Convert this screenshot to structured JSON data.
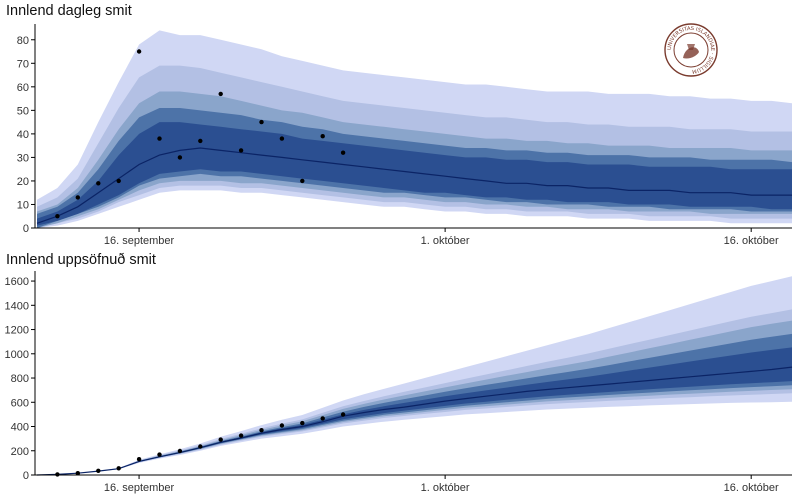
{
  "colors": {
    "bands": [
      "#eceefd",
      "#d0d7f4",
      "#b3c0e4",
      "#8aa5cb",
      "#4d73a8",
      "#2b4f91",
      "#0b2466"
    ],
    "points": "#000000",
    "axis": "#000000"
  },
  "logo": {
    "name": "university-seal",
    "text": "UNIVERSITAS ISLANDIAE · SIGILLUM"
  },
  "x_tick_labels": [
    "16. september",
    "1. október",
    "16. október"
  ],
  "chart_data": [
    {
      "type": "area",
      "title": "Innlend dagleg smit",
      "x": [
        "2020-09-11",
        "2020-09-12",
        "2020-09-13",
        "2020-09-14",
        "2020-09-15",
        "2020-09-16",
        "2020-09-17",
        "2020-09-18",
        "2020-09-19",
        "2020-09-20",
        "2020-09-21",
        "2020-09-22",
        "2020-09-23",
        "2020-09-24",
        "2020-09-25",
        "2020-09-26",
        "2020-09-27",
        "2020-09-28",
        "2020-09-29",
        "2020-09-30",
        "2020-10-01",
        "2020-10-02",
        "2020-10-03",
        "2020-10-04",
        "2020-10-05",
        "2020-10-06",
        "2020-10-07",
        "2020-10-08",
        "2020-10-09",
        "2020-10-10",
        "2020-10-11",
        "2020-10-12",
        "2020-10-13",
        "2020-10-14",
        "2020-10-15",
        "2020-10-16",
        "2020-10-17",
        "2020-10-18"
      ],
      "median": [
        2,
        5,
        9,
        15,
        21,
        27,
        31,
        33,
        34,
        33,
        32,
        31,
        30,
        29,
        28,
        27,
        26,
        25,
        24,
        23,
        22,
        21,
        20,
        19,
        19,
        18,
        18,
        17,
        17,
        16,
        16,
        16,
        15,
        15,
        15,
        14,
        14,
        14
      ],
      "bands": [
        {
          "level": "outer",
          "lower": [
            0,
            1,
            3,
            6,
            9,
            12,
            15,
            16,
            16,
            16,
            15,
            15,
            14,
            13,
            12,
            11,
            10,
            9,
            9,
            8,
            7,
            7,
            6,
            6,
            5,
            5,
            5,
            4,
            4,
            4,
            3,
            3,
            3,
            3,
            2,
            2,
            2,
            2
          ],
          "upper": [
            12,
            17,
            27,
            45,
            62,
            78,
            84,
            82,
            82,
            80,
            78,
            76,
            73,
            71,
            69,
            67,
            66,
            65,
            64,
            63,
            62,
            61,
            61,
            60,
            59,
            58,
            58,
            58,
            57,
            57,
            57,
            56,
            56,
            55,
            55,
            54,
            54,
            53
          ]
        },
        {
          "level": "b2",
          "lower": [
            0,
            2,
            4,
            7,
            11,
            14,
            17,
            18,
            18,
            18,
            17,
            17,
            16,
            15,
            14,
            13,
            12,
            11,
            11,
            10,
            9,
            9,
            8,
            8,
            7,
            7,
            7,
            6,
            6,
            6,
            5,
            5,
            5,
            5,
            4,
            4,
            4,
            4
          ],
          "upper": [
            9,
            13,
            21,
            36,
            51,
            64,
            69,
            69,
            68,
            66,
            64,
            62,
            60,
            58,
            56,
            54,
            53,
            52,
            51,
            50,
            49,
            48,
            47,
            47,
            46,
            45,
            45,
            44,
            44,
            43,
            43,
            43,
            42,
            42,
            42,
            41,
            41,
            41
          ]
        },
        {
          "level": "b3",
          "lower": [
            0,
            2,
            5,
            8,
            12,
            16,
            19,
            20,
            20,
            20,
            19,
            19,
            18,
            17,
            16,
            15,
            14,
            13,
            13,
            12,
            11,
            11,
            10,
            10,
            9,
            9,
            8,
            8,
            8,
            7,
            7,
            7,
            7,
            6,
            6,
            6,
            6,
            6
          ],
          "upper": [
            7,
            10,
            17,
            29,
            42,
            53,
            58,
            58,
            57,
            56,
            54,
            52,
            50,
            49,
            47,
            45,
            44,
            43,
            42,
            41,
            40,
            39,
            38,
            38,
            37,
            37,
            36,
            36,
            35,
            35,
            35,
            34,
            34,
            34,
            34,
            33,
            33,
            33
          ]
        },
        {
          "level": "b4",
          "lower": [
            0,
            3,
            6,
            9,
            13,
            18,
            21,
            22,
            23,
            22,
            22,
            21,
            20,
            19,
            18,
            17,
            16,
            15,
            15,
            14,
            13,
            13,
            12,
            11,
            11,
            10,
            10,
            10,
            9,
            9,
            9,
            8,
            8,
            8,
            8,
            7,
            7,
            7
          ],
          "upper": [
            6,
            9,
            15,
            25,
            37,
            47,
            51,
            51,
            50,
            49,
            48,
            46,
            45,
            43,
            42,
            40,
            39,
            38,
            37,
            36,
            35,
            34,
            34,
            33,
            33,
            32,
            32,
            31,
            31,
            31,
            30,
            30,
            30,
            29,
            29,
            29,
            29,
            28
          ]
        },
        {
          "level": "inner",
          "lower": [
            1,
            3,
            6,
            10,
            14,
            19,
            23,
            24,
            25,
            24,
            24,
            23,
            22,
            21,
            20,
            19,
            18,
            17,
            16,
            15,
            15,
            14,
            13,
            13,
            12,
            12,
            11,
            11,
            11,
            10,
            10,
            10,
            9,
            9,
            9,
            9,
            8,
            8
          ],
          "upper": [
            4,
            7,
            12,
            20,
            31,
            40,
            45,
            45,
            44,
            43,
            42,
            41,
            40,
            38,
            37,
            36,
            35,
            34,
            33,
            32,
            31,
            30,
            30,
            29,
            29,
            28,
            28,
            27,
            27,
            27,
            26,
            26,
            26,
            26,
            25,
            25,
            25,
            25
          ]
        }
      ],
      "observed_x": [
        "2020-09-12",
        "2020-09-13",
        "2020-09-14",
        "2020-09-15",
        "2020-09-16",
        "2020-09-17",
        "2020-09-18",
        "2020-09-19",
        "2020-09-20",
        "2020-09-21",
        "2020-09-22",
        "2020-09-23",
        "2020-09-24",
        "2020-09-25",
        "2020-09-26"
      ],
      "observed_y": [
        5,
        13,
        19,
        20,
        75,
        38,
        30,
        37,
        57,
        33,
        45,
        38,
        20,
        39,
        32
      ],
      "ylim": [
        0,
        85
      ],
      "yticks": [
        0,
        10,
        20,
        30,
        40,
        50,
        60,
        70,
        80
      ],
      "grid": false
    },
    {
      "type": "area",
      "title": "Innlend uppsöfnuð smit",
      "x": [
        "2020-09-11",
        "2020-09-12",
        "2020-09-13",
        "2020-09-14",
        "2020-09-15",
        "2020-09-16",
        "2020-09-17",
        "2020-09-18",
        "2020-09-19",
        "2020-09-20",
        "2020-09-21",
        "2020-09-22",
        "2020-09-23",
        "2020-09-24",
        "2020-09-25",
        "2020-09-26",
        "2020-09-27",
        "2020-09-28",
        "2020-09-29",
        "2020-09-30",
        "2020-10-01",
        "2020-10-02",
        "2020-10-03",
        "2020-10-04",
        "2020-10-05",
        "2020-10-06",
        "2020-10-07",
        "2020-10-08",
        "2020-10-09",
        "2020-10-10",
        "2020-10-11",
        "2020-10-12",
        "2020-10-13",
        "2020-10-14",
        "2020-10-15",
        "2020-10-16",
        "2020-10-17",
        "2020-10-18"
      ],
      "median": [
        0,
        5,
        15,
        32,
        52,
        112,
        150,
        185,
        225,
        270,
        305,
        345,
        375,
        400,
        440,
        485,
        515,
        540,
        560,
        585,
        610,
        630,
        650,
        670,
        690,
        705,
        720,
        735,
        750,
        765,
        780,
        795,
        810,
        825,
        840,
        855,
        870,
        890
      ],
      "bands": [
        {
          "level": "outer",
          "lower": [
            0,
            5,
            15,
            30,
            48,
            100,
            135,
            165,
            200,
            240,
            270,
            300,
            320,
            340,
            370,
            400,
            420,
            440,
            455,
            470,
            485,
            500,
            510,
            520,
            530,
            540,
            548,
            555,
            562,
            568,
            574,
            580,
            585,
            590,
            595,
            598,
            601,
            604
          ],
          "upper": [
            0,
            5,
            15,
            34,
            58,
            125,
            170,
            212,
            260,
            315,
            362,
            412,
            455,
            495,
            555,
            615,
            665,
            710,
            755,
            800,
            845,
            890,
            935,
            980,
            1025,
            1070,
            1115,
            1160,
            1210,
            1260,
            1310,
            1360,
            1410,
            1460,
            1510,
            1560,
            1600,
            1640
          ]
        },
        {
          "level": "b2",
          "lower": [
            0,
            5,
            15,
            31,
            50,
            104,
            141,
            173,
            209,
            250,
            283,
            315,
            338,
            360,
            392,
            425,
            448,
            470,
            487,
            504,
            520,
            537,
            549,
            561,
            573,
            585,
            594,
            602,
            611,
            619,
            627,
            635,
            642,
            649,
            656,
            662,
            668,
            674
          ],
          "upper": [
            0,
            5,
            15,
            33,
            56,
            120,
            163,
            202,
            246,
            297,
            340,
            385,
            424,
            459,
            513,
            567,
            610,
            649,
            686,
            722,
            758,
            794,
            829,
            864,
            899,
            934,
            968,
            1002,
            1040,
            1078,
            1116,
            1154,
            1192,
            1230,
            1268,
            1306,
            1336,
            1366
          ]
        },
        {
          "level": "b3",
          "lower": [
            0,
            5,
            15,
            31,
            50,
            107,
            144,
            177,
            214,
            256,
            290,
            323,
            347,
            370,
            403,
            437,
            461,
            484,
            502,
            520,
            537,
            555,
            568,
            581,
            594,
            607,
            617,
            626,
            636,
            645,
            654,
            663,
            671,
            679,
            687,
            694,
            701,
            708
          ],
          "upper": [
            0,
            5,
            15,
            33,
            55,
            117,
            158,
            196,
            238,
            287,
            329,
            372,
            409,
            443,
            494,
            545,
            586,
            623,
            657,
            690,
            723,
            755,
            787,
            818,
            849,
            880,
            910,
            940,
            975,
            1010,
            1045,
            1080,
            1115,
            1150,
            1185,
            1220,
            1247,
            1274
          ]
        },
        {
          "level": "b4",
          "lower": [
            0,
            5,
            15,
            31,
            51,
            108,
            146,
            180,
            218,
            261,
            295,
            330,
            355,
            379,
            413,
            448,
            473,
            497,
            516,
            535,
            553,
            572,
            586,
            600,
            614,
            628,
            639,
            649,
            660,
            670,
            680,
            690,
            699,
            708,
            717,
            725,
            733,
            741
          ],
          "upper": [
            0,
            5,
            15,
            33,
            54,
            116,
            155,
            192,
            233,
            280,
            318,
            360,
            395,
            426,
            474,
            522,
            561,
            595,
            626,
            656,
            686,
            715,
            743,
            770,
            797,
            824,
            850,
            876,
            906,
            936,
            966,
            996,
            1026,
            1056,
            1086,
            1116,
            1140,
            1164
          ]
        },
        {
          "level": "inner",
          "lower": [
            0,
            5,
            15,
            31,
            51,
            109,
            148,
            182,
            221,
            265,
            300,
            337,
            363,
            388,
            423,
            460,
            486,
            511,
            531,
            551,
            570,
            590,
            605,
            620,
            635,
            650,
            662,
            673,
            685,
            696,
            707,
            718,
            728,
            738,
            748,
            757,
            766,
            775
          ],
          "upper": [
            0,
            5,
            15,
            32,
            53,
            115,
            153,
            188,
            229,
            275,
            310,
            352,
            385,
            413,
            455,
            500,
            536,
            567,
            595,
            622,
            649,
            674,
            698,
            721,
            744,
            767,
            789,
            811,
            836,
            861,
            886,
            911,
            936,
            961,
            986,
            1011,
            1032,
            1053
          ]
        }
      ],
      "observed_x": [
        "2020-09-12",
        "2020-09-13",
        "2020-09-14",
        "2020-09-15",
        "2020-09-16",
        "2020-09-17",
        "2020-09-18",
        "2020-09-19",
        "2020-09-20",
        "2020-09-21",
        "2020-09-22",
        "2020-09-23",
        "2020-09-24",
        "2020-09-25",
        "2020-09-26"
      ],
      "observed_y": [
        5,
        15,
        35,
        55,
        130,
        168,
        198,
        235,
        292,
        325,
        370,
        408,
        428,
        467,
        499
      ],
      "ylim": [
        0,
        1650
      ],
      "yticks": [
        0,
        200,
        400,
        600,
        800,
        1000,
        1200,
        1400,
        1600
      ],
      "grid": false
    }
  ]
}
